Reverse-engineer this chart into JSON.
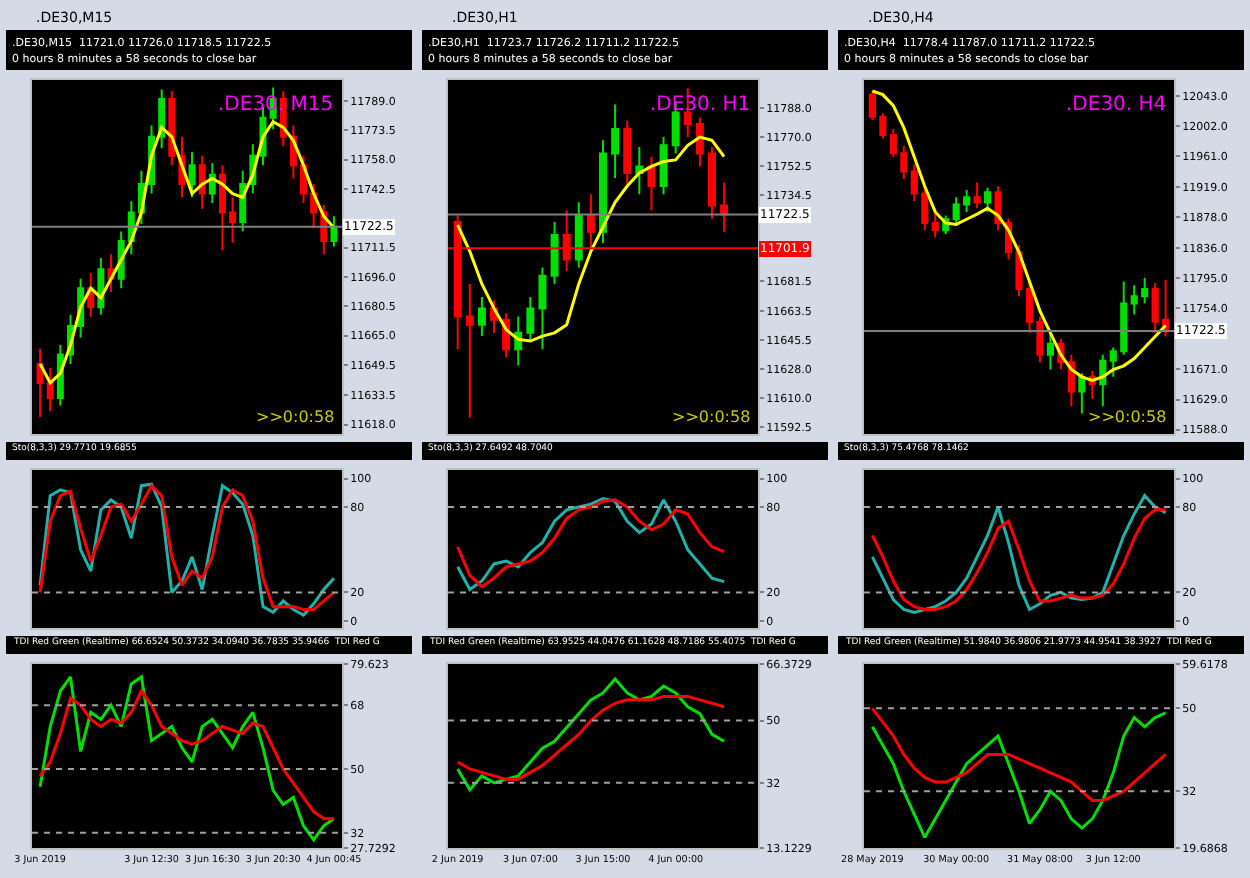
{
  "chart_data": [
    {
      "type": "candlestick",
      "title": ".DE30,M15",
      "tick_labels": "y",
      "categories": [
        null,
        null,
        null,
        null,
        null,
        null,
        null,
        null,
        null,
        null,
        null,
        null,
        null,
        null,
        null,
        null,
        null,
        null,
        null,
        null,
        null,
        null,
        null,
        null,
        null,
        null,
        null,
        null,
        null,
        null
      ],
      "ohlc": [
        [
          11650,
          11658,
          11622,
          11640
        ],
        [
          11640,
          11648,
          11625,
          11632
        ],
        [
          11632,
          11660,
          11628,
          11655
        ],
        [
          11655,
          11676,
          11650,
          11670
        ],
        [
          11670,
          11695,
          11664,
          11690
        ],
        [
          11690,
          11698,
          11675,
          11680
        ],
        [
          11680,
          11706,
          11676,
          11700
        ],
        [
          11700,
          11708,
          11688,
          11695
        ],
        [
          11695,
          11720,
          11690,
          11715
        ],
        [
          11715,
          11736,
          11708,
          11730
        ],
        [
          11730,
          11752,
          11724,
          11745
        ],
        [
          11745,
          11776,
          11740,
          11770
        ],
        [
          11770,
          11795,
          11764,
          11790
        ],
        [
          11790,
          11794,
          11755,
          11760
        ],
        [
          11760,
          11770,
          11738,
          11745
        ],
        [
          11745,
          11762,
          11738,
          11755
        ],
        [
          11755,
          11760,
          11732,
          11740
        ],
        [
          11740,
          11756,
          11735,
          11750
        ],
        [
          11750,
          11755,
          11710,
          11730
        ],
        [
          11730,
          11738,
          11714,
          11725
        ],
        [
          11725,
          11752,
          11720,
          11745
        ],
        [
          11745,
          11766,
          11740,
          11760
        ],
        [
          11760,
          11786,
          11755,
          11780
        ],
        [
          11780,
          11796,
          11774,
          11790
        ],
        [
          11790,
          11794,
          11765,
          11770
        ],
        [
          11770,
          11776,
          11748,
          11755
        ],
        [
          11755,
          11760,
          11735,
          11740
        ],
        [
          11740,
          11745,
          11722,
          11730
        ],
        [
          11730,
          11734,
          11708,
          11715
        ],
        [
          11715,
          11728,
          11712,
          11722.5
        ]
      ],
      "colors": [
        "#ff0000",
        "#ff0000",
        "#00e000",
        "#00e000",
        "#00e000",
        "#ff0000",
        "#00e000",
        "#ff0000",
        "#00e000",
        "#00e000",
        "#00e000",
        "#00e000",
        "#00e000",
        "#ff0000",
        "#ff0000",
        "#00e000",
        "#ff0000",
        "#00e000",
        "#ff0000",
        "#ff0000",
        "#00e000",
        "#00e000",
        "#00e000",
        "#00e000",
        "#ff0000",
        "#ff0000",
        "#ff0000",
        "#ff0000",
        "#ff0000",
        "#00e000"
      ],
      "series": [
        {
          "type": "line",
          "color": "#ffff00",
          "values": [
            11650,
            11640,
            11645,
            11660,
            11680,
            11690,
            11685,
            11695,
            11705,
            11715,
            11730,
            11760,
            11775,
            11770,
            11755,
            11740,
            11745,
            11748,
            11745,
            11740,
            11738,
            11750,
            11770,
            11778,
            11775,
            11768,
            11755,
            11740,
            11728,
            11722
          ]
        }
      ],
      "ylim": [
        11613,
        11800
      ],
      "yticks": [
        {
          "value": 11618,
          "label": "11618.0"
        },
        11633.5,
        11649.5,
        {
          "value": 11665,
          "label": "11665.0"
        },
        11680.5,
        {
          "value": 11696,
          "label": "11696.0"
        },
        11711.5,
        11742.5,
        {
          "value": 11758,
          "label": "11758.0"
        },
        11773.5,
        {
          "value": 11789,
          "label": "11789.0"
        }
      ],
      "ref_lines": [
        {
          "axis": "y",
          "value": 11722.5,
          "label": "11722.5",
          "color": "#808080"
        }
      ],
      "annotations": [
        ".DE30,M15  11721.0 11726.0 11718.5 11722.5",
        "0 hours 8 minutes a 58 seconds to close bar",
        ".DE30. M15",
        ">>0:0:58"
      ]
    },
    {
      "type": "candlestick",
      "title": ".DE30,H1",
      "tick_labels": "y",
      "categories": [
        null,
        null,
        null,
        null,
        null,
        null,
        null,
        null,
        null,
        null,
        null,
        null,
        null,
        null,
        null,
        null,
        null,
        null,
        null,
        null,
        null,
        null,
        null,
        null,
        null
      ],
      "ohlc": [
        [
          11718,
          11722,
          11640,
          11660
        ],
        [
          11660,
          11680,
          11598,
          11655
        ],
        [
          11655,
          11672,
          11648,
          11665
        ],
        [
          11665,
          11670,
          11650,
          11658
        ],
        [
          11658,
          11662,
          11635,
          11640
        ],
        [
          11640,
          11660,
          11630,
          11650
        ],
        [
          11650,
          11672,
          11645,
          11665
        ],
        [
          11665,
          11690,
          11640,
          11685
        ],
        [
          11685,
          11718,
          11680,
          11710
        ],
        [
          11710,
          11725,
          11688,
          11695
        ],
        [
          11695,
          11730,
          11690,
          11722
        ],
        [
          11722,
          11735,
          11700,
          11712
        ],
        [
          11712,
          11768,
          11705,
          11760
        ],
        [
          11760,
          11790,
          11745,
          11775
        ],
        [
          11775,
          11780,
          11740,
          11748
        ],
        [
          11748,
          11764,
          11735,
          11752
        ],
        [
          11752,
          11758,
          11725,
          11740
        ],
        [
          11740,
          11770,
          11735,
          11765
        ],
        [
          11765,
          11792,
          11760,
          11785
        ],
        [
          11785,
          11800,
          11770,
          11778
        ],
        [
          11778,
          11782,
          11752,
          11760
        ],
        [
          11760,
          11764,
          11720,
          11728
        ],
        [
          11728,
          11742,
          11712,
          11722.5
        ],
        null,
        null
      ],
      "colors": [
        "#ff0000",
        "#ff0000",
        "#00e000",
        "#ff0000",
        "#ff0000",
        "#00e000",
        "#00e000",
        "#00e000",
        "#00e000",
        "#ff0000",
        "#00e000",
        "#ff0000",
        "#00e000",
        "#00e000",
        "#ff0000",
        "#00e000",
        "#ff0000",
        "#00e000",
        "#00e000",
        "#ff0000",
        "#ff0000",
        "#ff0000",
        "#ff0000",
        null,
        null
      ],
      "series": [
        {
          "type": "line",
          "color": "#ffff00",
          "values": [
            11716,
            11700,
            11680,
            11665,
            11652,
            11646,
            11645,
            11648,
            11650,
            11655,
            11680,
            11700,
            11715,
            11730,
            11740,
            11748,
            11752,
            11755,
            11756,
            11765,
            11770,
            11768,
            11758,
            null,
            null
          ]
        }
      ],
      "ylim": [
        11588,
        11805
      ],
      "yticks": [
        11592.5,
        {
          "value": 11610,
          "label": "11610.0"
        },
        {
          "value": 11628,
          "label": "11628.0"
        },
        11645.5,
        11663.5,
        11681.5,
        11734.5,
        11752.5,
        {
          "value": 11770,
          "label": "11770.0"
        },
        {
          "value": 11788,
          "label": "11788.0"
        }
      ],
      "ref_lines": [
        {
          "axis": "y",
          "value": 11722.5,
          "label": "11722.5",
          "color": "#808080"
        },
        {
          "axis": "y",
          "value": 11701.9,
          "label": "11701.9",
          "color": "#ff0000"
        }
      ],
      "annotations": [
        ".DE30,H1  11723.7 11726.2 11711.2 11722.5",
        "0 hours 8 minutes a 58 seconds to close bar",
        ".DE30. H1",
        ">>0:0:58"
      ]
    },
    {
      "type": "candlestick",
      "title": ".DE30,H4",
      "tick_labels": "y",
      "categories": [
        null,
        null,
        null,
        null,
        null,
        null,
        null,
        null,
        null,
        null,
        null,
        null,
        null,
        null,
        null,
        null,
        null,
        null,
        null,
        null,
        null,
        null,
        null,
        null,
        null,
        null,
        null,
        null,
        null
      ],
      "ohlc": [
        [
          12045,
          12050,
          12010,
          12015
        ],
        [
          12015,
          12020,
          11985,
          11990
        ],
        [
          11990,
          11998,
          11960,
          11965
        ],
        [
          11965,
          11975,
          11930,
          11940
        ],
        [
          11940,
          11950,
          11900,
          11910
        ],
        [
          11910,
          11918,
          11860,
          11870
        ],
        [
          11870,
          11890,
          11850,
          11860
        ],
        [
          11860,
          11880,
          11855,
          11875
        ],
        [
          11875,
          11905,
          11868,
          11895
        ],
        [
          11895,
          11915,
          11885,
          11905
        ],
        [
          11905,
          11925,
          11890,
          11898
        ],
        [
          11898,
          11918,
          11885,
          11912
        ],
        [
          11912,
          11920,
          11860,
          11870
        ],
        [
          11870,
          11876,
          11820,
          11830
        ],
        [
          11830,
          11840,
          11770,
          11780
        ],
        [
          11780,
          11790,
          11720,
          11735
        ],
        [
          11735,
          11742,
          11680,
          11690
        ],
        [
          11690,
          11720,
          11670,
          11705
        ],
        [
          11705,
          11712,
          11670,
          11680
        ],
        [
          11680,
          11690,
          11620,
          11640
        ],
        [
          11640,
          11665,
          11610,
          11660
        ],
        [
          11660,
          11668,
          11630,
          11650
        ],
        [
          11650,
          11690,
          11620,
          11682
        ],
        [
          11682,
          11700,
          11660,
          11695
        ],
        [
          11695,
          11790,
          11690,
          11760
        ],
        [
          11760,
          11785,
          11745,
          11770
        ],
        [
          11770,
          11795,
          11760,
          11780
        ],
        [
          11780,
          11788,
          11720,
          11735
        ],
        [
          11738,
          11792,
          11715,
          11722.5
        ]
      ],
      "colors": [
        "#ff0000",
        "#ff0000",
        "#ff0000",
        "#ff0000",
        "#ff0000",
        "#ff0000",
        "#ff0000",
        "#00e000",
        "#00e000",
        "#00e000",
        "#ff0000",
        "#00e000",
        "#ff0000",
        "#ff0000",
        "#ff0000",
        "#ff0000",
        "#ff0000",
        "#00e000",
        "#ff0000",
        "#ff0000",
        "#00e000",
        "#ff0000",
        "#00e000",
        "#00e000",
        "#00e000",
        "#00e000",
        "#00e000",
        "#ff0000",
        "#ff0000"
      ],
      "series": [
        {
          "type": "line",
          "color": "#ffff00",
          "values": [
            12050,
            12045,
            12030,
            12000,
            11960,
            11920,
            11885,
            11870,
            11868,
            11875,
            11882,
            11890,
            11880,
            11860,
            11830,
            11790,
            11750,
            11720,
            11690,
            11670,
            11660,
            11655,
            11660,
            11670,
            11675,
            11685,
            11700,
            11715,
            11730
          ]
        }
      ],
      "ylim": [
        11582,
        12065
      ],
      "yticks": [
        {
          "value": 11588,
          "label": "11588.0"
        },
        {
          "value": 11629,
          "label": "11629.0"
        },
        {
          "value": 11671,
          "label": "11671.0"
        },
        {
          "value": 11754,
          "label": "11754.0"
        },
        {
          "value": 11795,
          "label": "11795.0"
        },
        {
          "value": 11836,
          "label": "11836.0"
        },
        {
          "value": 11878,
          "label": "11878.0"
        },
        {
          "value": 11919,
          "label": "11919.0"
        },
        {
          "value": 11961,
          "label": "11961.0"
        },
        {
          "value": 12002,
          "label": "12002.0"
        },
        {
          "value": 12043,
          "label": "12043.0"
        }
      ],
      "ref_lines": [
        {
          "axis": "y",
          "value": 11722.5,
          "label": "11722.5",
          "color": "#808080"
        }
      ],
      "annotations": [
        ".DE30,H4  11778.4 11787.0 11711.2 11722.5",
        "0 hours 8 minutes a 58 seconds to close bar",
        ".DE30. H4",
        ">>0:0:58"
      ]
    },
    {
      "type": "line",
      "tick_labels": "y",
      "categories": [
        null,
        null,
        null,
        null,
        null,
        null,
        null,
        null,
        null,
        null,
        null,
        null,
        null,
        null,
        null,
        null,
        null,
        null,
        null,
        null,
        null,
        null,
        null,
        null,
        null,
        null,
        null,
        null,
        null,
        null
      ],
      "series": [
        {
          "color": "#20b2aa",
          "values": [
            25,
            88,
            92,
            90,
            50,
            35,
            78,
            85,
            80,
            58,
            95,
            96,
            80,
            20,
            28,
            45,
            22,
            60,
            95,
            90,
            82,
            60,
            10,
            6,
            14,
            8,
            4,
            12,
            22,
            30
          ]
        },
        {
          "color": "#ff0000",
          "values": [
            20,
            70,
            88,
            91,
            65,
            42,
            60,
            80,
            82,
            70,
            82,
            95,
            88,
            45,
            25,
            35,
            30,
            45,
            80,
            92,
            88,
            70,
            30,
            10,
            10,
            10,
            8,
            8,
            14,
            20
          ]
        }
      ],
      "ylim": [
        -5,
        106
      ],
      "yticks": [
        0,
        20,
        80,
        100
      ],
      "ref_lines": [
        {
          "axis": "y",
          "value": 20,
          "line_style": "dotted",
          "color": "#a0a0a0"
        },
        {
          "axis": "y",
          "value": 80,
          "line_style": "dotted",
          "color": "#a0a0a0"
        }
      ],
      "annotations": [
        "Sto(8,3,3) 29.7710 19.6855"
      ]
    },
    {
      "type": "line",
      "tick_labels": "y",
      "categories": [
        null,
        null,
        null,
        null,
        null,
        null,
        null,
        null,
        null,
        null,
        null,
        null,
        null,
        null,
        null,
        null,
        null,
        null,
        null,
        null,
        null,
        null,
        null,
        null,
        null
      ],
      "series": [
        {
          "color": "#20b2aa",
          "values": [
            38,
            22,
            28,
            40,
            42,
            38,
            48,
            55,
            70,
            78,
            80,
            82,
            86,
            84,
            70,
            62,
            68,
            85,
            70,
            50,
            40,
            30,
            27.6,
            null,
            null
          ]
        },
        {
          "color": "#ff0000",
          "values": [
            52,
            32,
            24,
            30,
            38,
            40,
            42,
            48,
            58,
            72,
            78,
            80,
            84,
            85,
            80,
            70,
            64,
            68,
            78,
            75,
            62,
            52,
            48.7,
            null,
            null
          ]
        }
      ],
      "ylim": [
        -5,
        106
      ],
      "yticks": [
        0,
        20,
        80,
        100
      ],
      "ref_lines": [
        {
          "axis": "y",
          "value": 20,
          "line_style": "dotted",
          "color": "#a0a0a0"
        },
        {
          "axis": "y",
          "value": 80,
          "line_style": "dotted",
          "color": "#a0a0a0"
        }
      ],
      "annotations": [
        "Sto(8,3,3) 27.6492 48.7040"
      ]
    },
    {
      "type": "line",
      "tick_labels": "y",
      "categories": [
        null,
        null,
        null,
        null,
        null,
        null,
        null,
        null,
        null,
        null,
        null,
        null,
        null,
        null,
        null,
        null,
        null,
        null,
        null,
        null,
        null,
        null,
        null,
        null,
        null,
        null,
        null,
        null,
        null
      ],
      "series": [
        {
          "color": "#20b2aa",
          "values": [
            45,
            30,
            15,
            8,
            6,
            8,
            10,
            14,
            20,
            30,
            45,
            60,
            80,
            55,
            25,
            8,
            12,
            18,
            20,
            16,
            15,
            16,
            20,
            40,
            60,
            75,
            88,
            80,
            76
          ]
        },
        {
          "color": "#ff0000",
          "values": [
            60,
            45,
            28,
            15,
            10,
            8,
            8,
            10,
            14,
            22,
            34,
            48,
            65,
            70,
            50,
            28,
            14,
            14,
            16,
            18,
            16,
            16,
            18,
            26,
            40,
            58,
            72,
            78,
            78
          ]
        }
      ],
      "ylim": [
        -5,
        106
      ],
      "yticks": [
        0,
        20,
        80,
        100
      ],
      "ref_lines": [
        {
          "axis": "y",
          "value": 20,
          "line_style": "dotted",
          "color": "#a0a0a0"
        },
        {
          "axis": "y",
          "value": 80,
          "line_style": "dotted",
          "color": "#a0a0a0"
        }
      ],
      "annotations": [
        "Sto(8,3,3) 75.4768 78.1462"
      ]
    },
    {
      "type": "line",
      "categories": [
        "3 Jun 2019",
        null,
        null,
        null,
        null,
        null,
        null,
        null,
        null,
        null,
        null,
        "3 Jun 12:30",
        null,
        null,
        null,
        null,
        null,
        "3 Jun 16:30",
        null,
        null,
        null,
        null,
        null,
        "3 Jun 20:30",
        null,
        null,
        null,
        null,
        null,
        "4 Jun 00:45"
      ],
      "series": [
        {
          "color": "#00dd00",
          "values": [
            45,
            62,
            72,
            76,
            55,
            66,
            64,
            68,
            62,
            74,
            76,
            58,
            60,
            62,
            56,
            52,
            62,
            64,
            60,
            56,
            62,
            66,
            56,
            44,
            40,
            42,
            34,
            30,
            34,
            36
          ]
        },
        {
          "color": "#ff0000",
          "values": [
            48,
            52,
            60,
            70,
            68,
            64,
            62,
            64,
            63,
            66,
            72,
            68,
            62,
            60,
            58,
            57,
            58,
            60,
            62,
            61,
            60,
            63,
            62,
            56,
            50,
            46,
            42,
            38,
            36,
            36
          ]
        }
      ],
      "ylim": [
        27.7292,
        79.623
      ],
      "yticks": [
        27.7292,
        32,
        50,
        68,
        79.623
      ],
      "ref_lines": [
        {
          "axis": "y",
          "value": 32,
          "line_style": "dotted",
          "color": "#a0a0a0"
        },
        {
          "axis": "y",
          "value": 50,
          "line_style": "dotted",
          "color": "#a0a0a0"
        },
        {
          "axis": "y",
          "value": 68,
          "line_style": "dotted",
          "color": "#a0a0a0"
        }
      ],
      "annotations": [
        "TDI Red Green (Realtime) 66.6524 50.3732 34.0940 36.7835 35.9466  TDI Red G"
      ]
    },
    {
      "type": "line",
      "categories": [
        "2 Jun 2019",
        null,
        null,
        null,
        null,
        null,
        "3 Jun 07:00",
        null,
        null,
        null,
        null,
        null,
        "3 Jun 15:00",
        null,
        null,
        null,
        null,
        null,
        "4 Jun 00:00",
        null,
        null,
        null,
        null,
        null,
        null
      ],
      "series": [
        {
          "color": "#00dd00",
          "values": [
            36,
            30,
            34,
            32,
            33,
            34,
            38,
            42,
            44,
            48,
            52,
            56,
            58,
            62,
            58,
            56,
            57,
            60,
            58,
            54,
            52,
            46,
            44,
            null,
            null
          ]
        },
        {
          "color": "#ff0000",
          "values": [
            38,
            36,
            35,
            34,
            33,
            33,
            35,
            37,
            40,
            43,
            46,
            50,
            53,
            55,
            56,
            56,
            56,
            57,
            57,
            57,
            56,
            55,
            54,
            null,
            null
          ]
        }
      ],
      "ylim": [
        13.1229,
        66.3729
      ],
      "yticks": [
        13.1229,
        32,
        50,
        66.3729
      ],
      "ref_lines": [
        {
          "axis": "y",
          "value": 32,
          "line_style": "dotted",
          "color": "#a0a0a0"
        },
        {
          "axis": "y",
          "value": 50,
          "line_style": "dotted",
          "color": "#a0a0a0"
        }
      ],
      "annotations": [
        "TDI Red Green (Realtime) 63.9525 44.0476 61.1628 48.7186 55.4075  TDI Red G"
      ]
    },
    {
      "type": "line",
      "categories": [
        "28 May 2019",
        null,
        null,
        null,
        null,
        null,
        null,
        null,
        "30 May 00:00",
        null,
        null,
        null,
        null,
        null,
        null,
        null,
        "31 May 08:00",
        null,
        null,
        null,
        null,
        null,
        null,
        "3 Jun 12:00",
        null,
        null,
        null,
        null,
        null
      ],
      "series": [
        {
          "color": "#00dd00",
          "values": [
            46,
            42,
            38,
            32,
            27,
            22,
            26,
            30,
            34,
            38,
            40,
            42,
            44,
            38,
            32,
            25,
            28,
            32,
            30,
            26,
            24,
            26,
            30,
            36,
            44,
            48,
            46,
            48,
            49
          ]
        },
        {
          "color": "#ff0000",
          "values": [
            50,
            47,
            44,
            40,
            37,
            35,
            34,
            34,
            35,
            36,
            38,
            40,
            40,
            40,
            39,
            38,
            37,
            36,
            35,
            34,
            32,
            30,
            30,
            31,
            32,
            34,
            36,
            38,
            40
          ]
        }
      ],
      "ylim": [
        19.6868,
        59.6178
      ],
      "yticks": [
        19.6868,
        32,
        50,
        59.6178
      ],
      "ref_lines": [
        {
          "axis": "y",
          "value": 32,
          "line_style": "dotted",
          "color": "#a0a0a0"
        },
        {
          "axis": "y",
          "value": 50,
          "line_style": "dotted",
          "color": "#a0a0a0"
        }
      ],
      "annotations": [
        "TDI Red Green (Realtime) 51.9840 36.9806 21.9773 44.9541 38.3927  TDI Red G"
      ]
    }
  ]
}
